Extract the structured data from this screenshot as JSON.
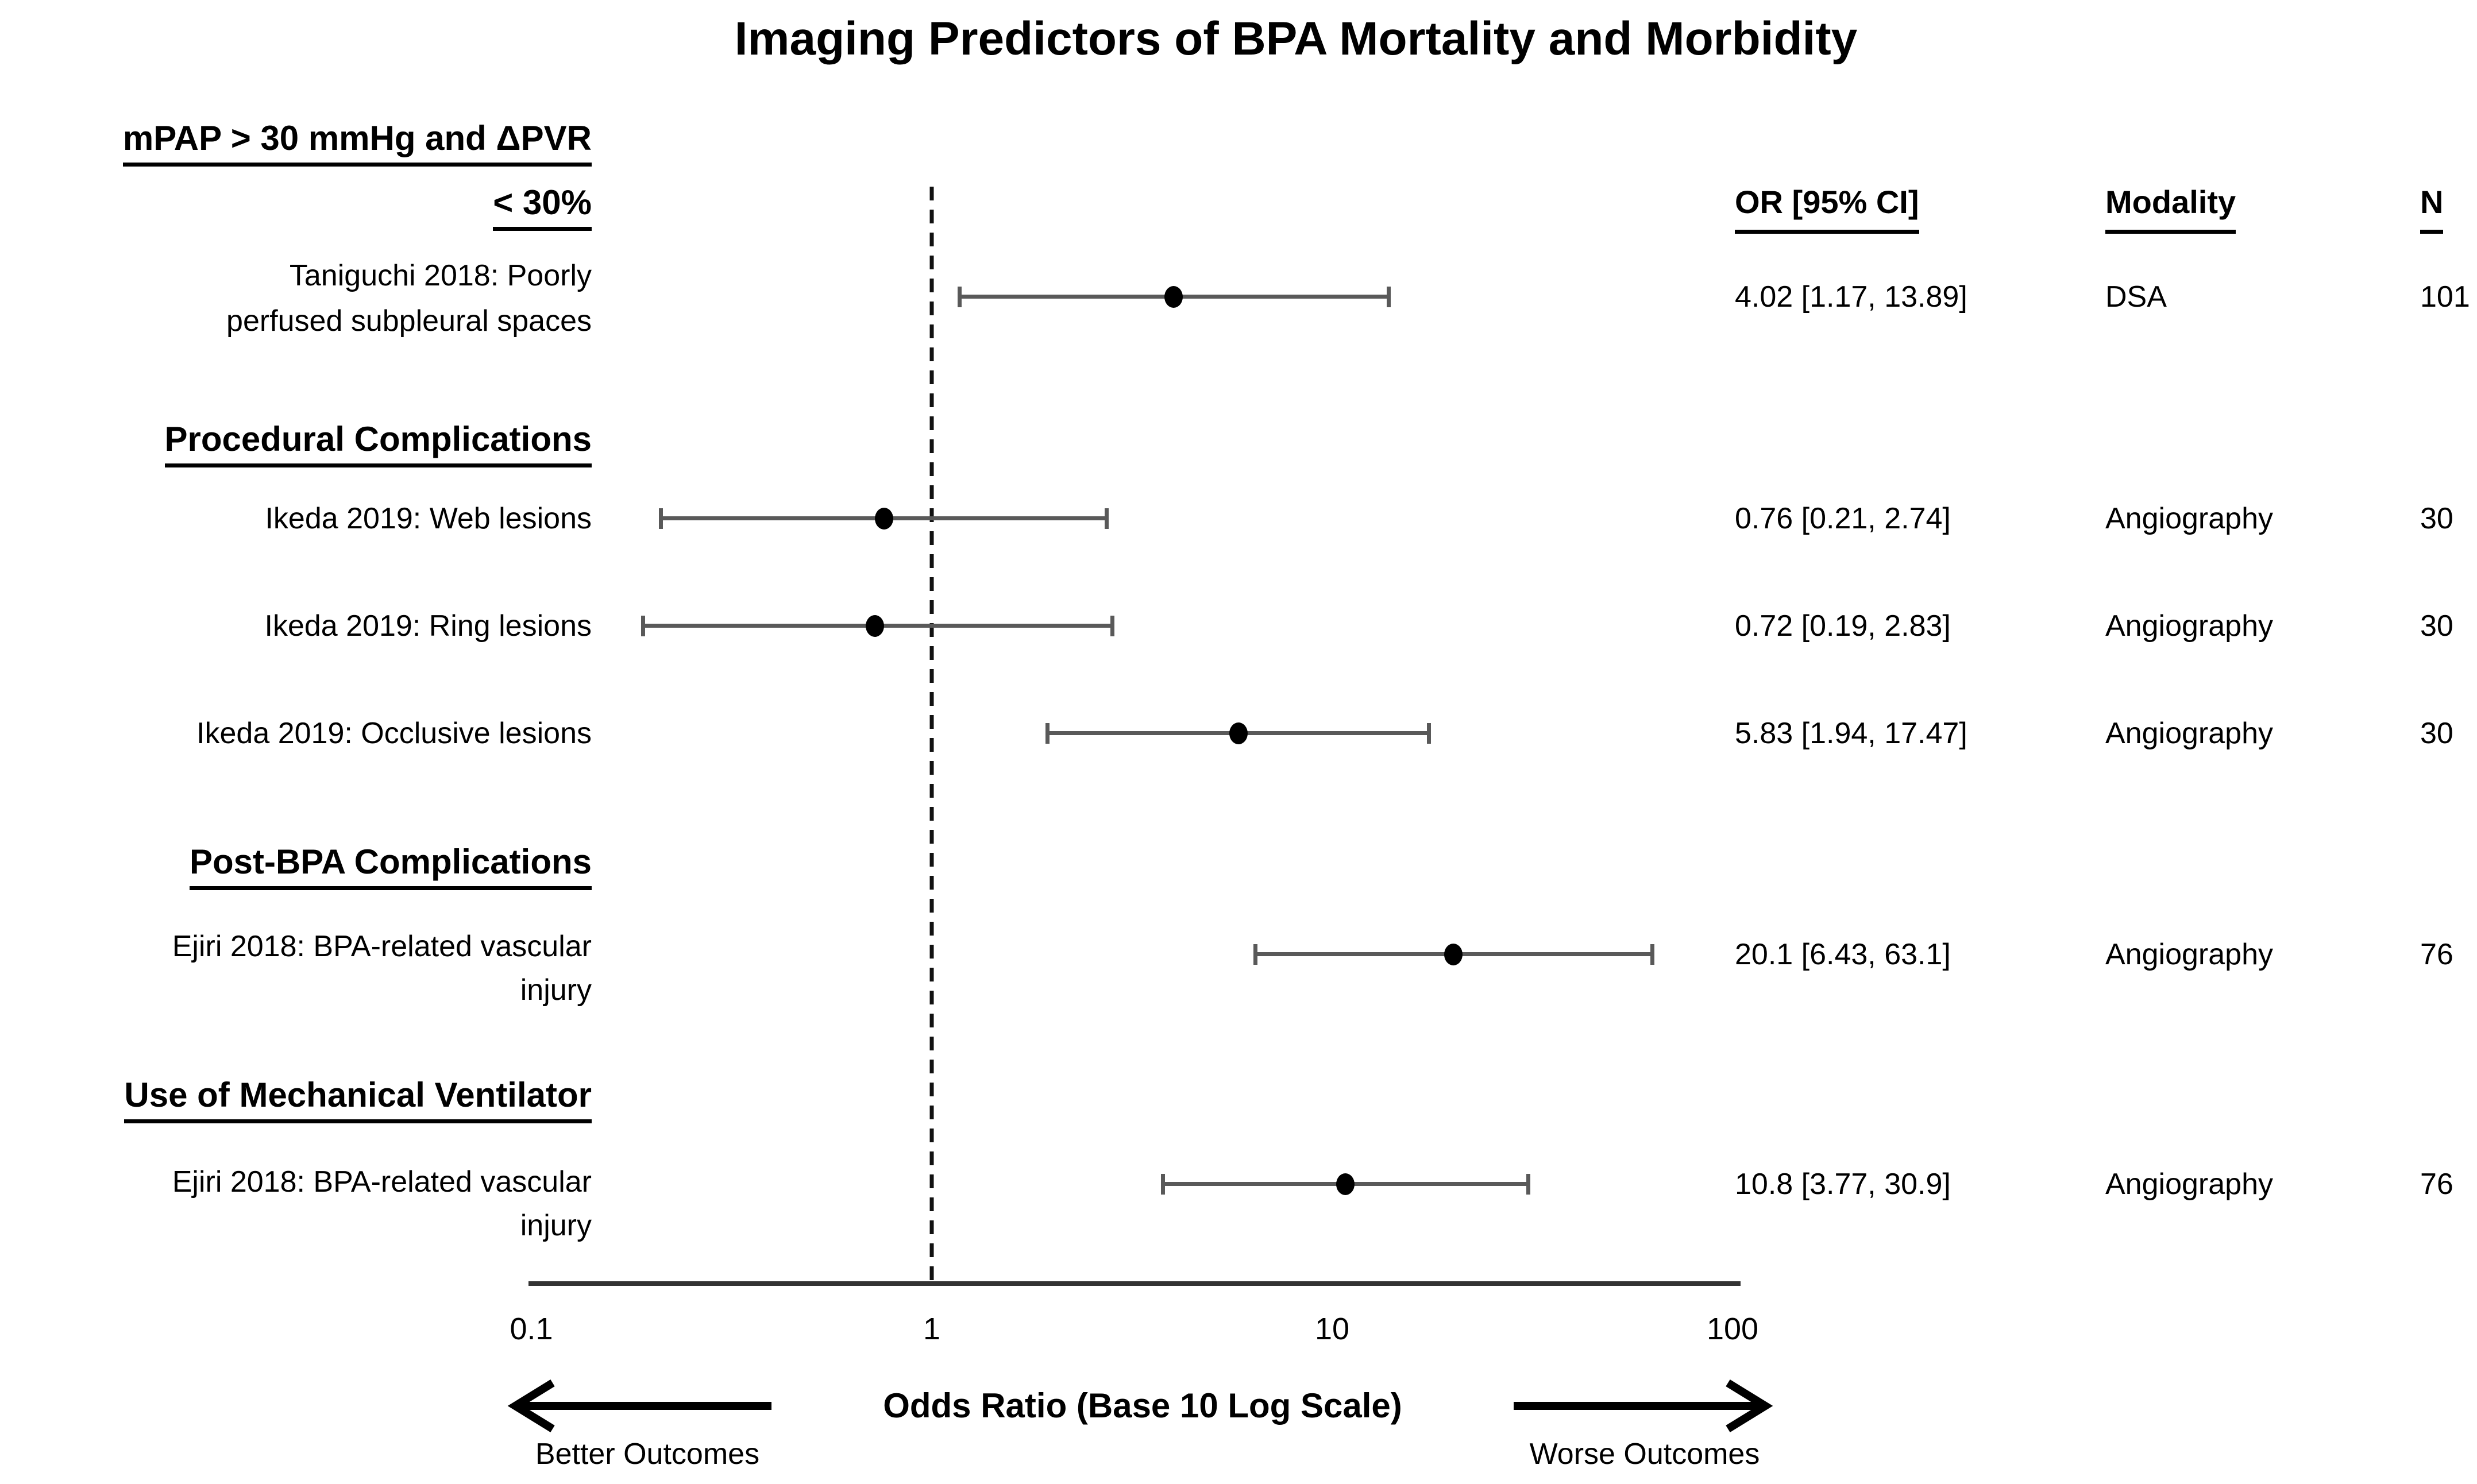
{
  "title": "Imaging Predictors of BPA Mortality and Morbidity",
  "table": {
    "or_header": "OR [95% CI]",
    "modality_header": "Modality",
    "n_header": "N"
  },
  "axis": {
    "tick_labels": [
      "0.1",
      "1",
      "10",
      "100"
    ],
    "tick_values": [
      0.1,
      1,
      10,
      100
    ],
    "title": "Odds Ratio (Base 10 Log Scale)",
    "left_label": "Better Outcomes",
    "right_label": "Worse Outcomes",
    "reference_value": 1
  },
  "chart_data": {
    "type": "forest",
    "x_scale": "log10",
    "x_range": [
      0.1,
      100
    ],
    "reference_line": 1,
    "colors": {
      "point": "#000000",
      "ci_bar": "#595959",
      "axis_line": "#333333",
      "reference_line": "#111111"
    },
    "groups": [
      {
        "section": "mPAP > 30 mmHg and ΔPVR < 30%",
        "section_lines": [
          "mPAP > 30 mmHg and ΔPVR",
          "< 30%"
        ],
        "studies": [
          {
            "label_lines": [
              "Taniguchi 2018: Poorly",
              "perfused subpleural spaces"
            ],
            "or": 4.02,
            "ci_low": 1.17,
            "ci_high": 13.89,
            "or_text": "4.02 [1.17, 13.89]",
            "modality": "DSA",
            "n": "101"
          }
        ]
      },
      {
        "section": "Procedural Complications",
        "section_lines": [
          "Procedural Complications"
        ],
        "studies": [
          {
            "label_lines": [
              "Ikeda 2019: Web lesions"
            ],
            "or": 0.76,
            "ci_low": 0.21,
            "ci_high": 2.74,
            "or_text": "0.76 [0.21, 2.74]",
            "modality": "Angiography",
            "n": "30"
          },
          {
            "label_lines": [
              "Ikeda 2019: Ring lesions"
            ],
            "or": 0.72,
            "ci_low": 0.19,
            "ci_high": 2.83,
            "or_text": "0.72 [0.19, 2.83]",
            "modality": "Angiography",
            "n": "30"
          },
          {
            "label_lines": [
              "Ikeda 2019: Occlusive lesions"
            ],
            "or": 5.83,
            "ci_low": 1.94,
            "ci_high": 17.47,
            "or_text": "5.83 [1.94, 17.47]",
            "modality": "Angiography",
            "n": "30"
          }
        ]
      },
      {
        "section": "Post-BPA Complications",
        "section_lines": [
          "Post-BPA Complications"
        ],
        "studies": [
          {
            "label_lines": [
              "Ejiri 2018: BPA-related vascular",
              "injury"
            ],
            "or": 20.1,
            "ci_low": 6.43,
            "ci_high": 63.1,
            "or_text": "20.1 [6.43, 63.1]",
            "modality": "Angiography",
            "n": "76"
          }
        ]
      },
      {
        "section": "Use of Mechanical Ventilator",
        "section_lines": [
          "Use of Mechanical Ventilator"
        ],
        "studies": [
          {
            "label_lines": [
              "Ejiri 2018: BPA-related vascular",
              "injury"
            ],
            "or": 10.8,
            "ci_low": 3.77,
            "ci_high": 30.9,
            "or_text": "10.8 [3.77, 30.9]",
            "modality": "Angiography",
            "n": "76"
          }
        ]
      }
    ]
  }
}
